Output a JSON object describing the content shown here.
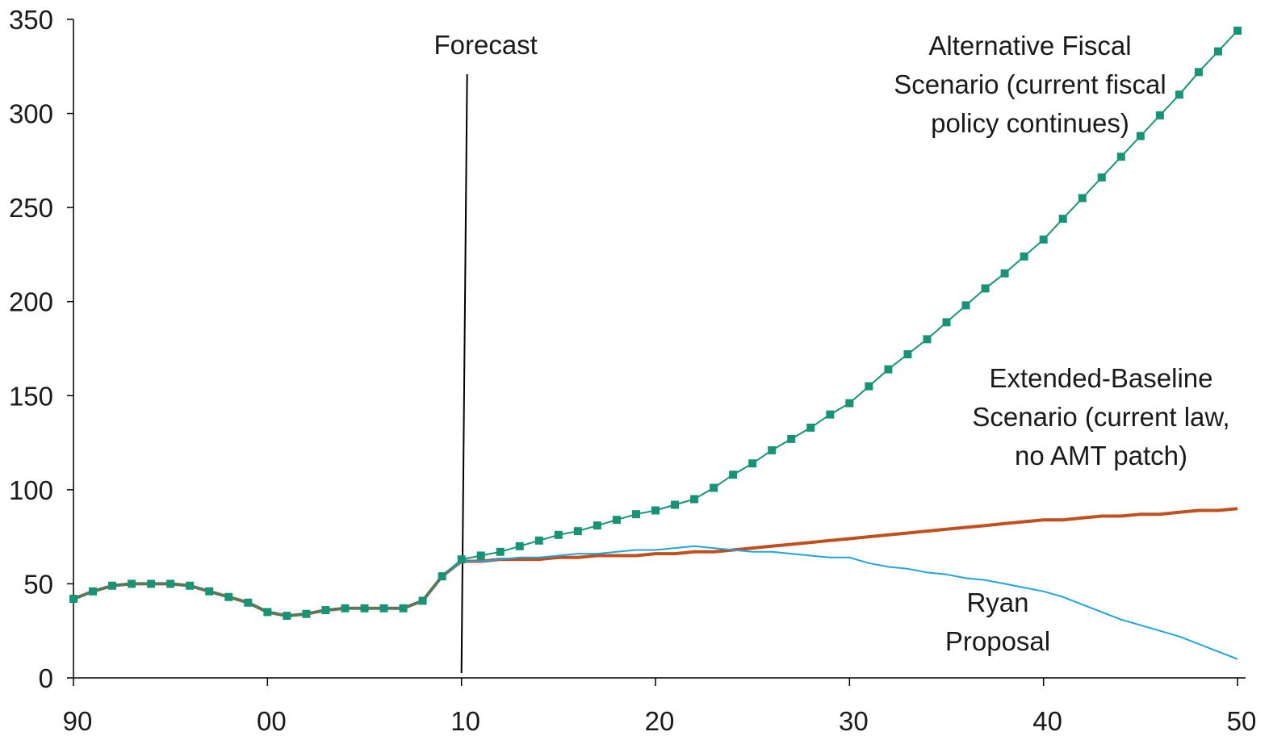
{
  "chart_data": {
    "type": "line",
    "title": "",
    "xlabel": "",
    "ylabel": "",
    "xlim": [
      1990,
      2050
    ],
    "ylim": [
      0,
      350
    ],
    "grid": false,
    "legend": "none",
    "x_ticks": [
      {
        "value": 1990,
        "label": "90"
      },
      {
        "value": 2000,
        "label": "00"
      },
      {
        "value": 2010,
        "label": "10"
      },
      {
        "value": 2020,
        "label": "20"
      },
      {
        "value": 2030,
        "label": "30"
      },
      {
        "value": 2040,
        "label": "40"
      },
      {
        "value": 2050,
        "label": "50"
      }
    ],
    "y_ticks": [
      0,
      50,
      100,
      150,
      200,
      250,
      300,
      350
    ],
    "x": [
      1990,
      1991,
      1992,
      1993,
      1994,
      1995,
      1996,
      1997,
      1998,
      1999,
      2000,
      2001,
      2002,
      2003,
      2004,
      2005,
      2006,
      2007,
      2008,
      2009,
      2010,
      2011,
      2012,
      2013,
      2014,
      2015,
      2016,
      2017,
      2018,
      2019,
      2020,
      2021,
      2022,
      2023,
      2024,
      2025,
      2026,
      2027,
      2028,
      2029,
      2030,
      2031,
      2032,
      2033,
      2034,
      2035,
      2036,
      2037,
      2038,
      2039,
      2040,
      2041,
      2042,
      2043,
      2044,
      2045,
      2046,
      2047,
      2048,
      2049,
      2050
    ],
    "series": [
      {
        "key": "extended",
        "color": "#c0501e",
        "values": [
          42,
          46,
          49,
          50,
          50,
          50,
          49,
          46,
          43,
          40,
          35,
          33,
          34,
          36,
          37,
          37,
          37,
          37,
          41,
          54,
          62,
          62,
          63,
          63,
          63,
          64,
          64,
          65,
          65,
          65,
          66,
          66,
          67,
          67,
          68,
          69,
          70,
          71,
          72,
          73,
          74,
          75,
          76,
          77,
          78,
          79,
          80,
          81,
          82,
          83,
          84,
          84,
          85,
          86,
          86,
          87,
          87,
          88,
          89,
          89,
          90
        ],
        "label_lines": [
          "Extended-Baseline",
          "Scenario (current law,",
          "no AMT patch)"
        ]
      },
      {
        "key": "ryan",
        "color": "#1ea4de",
        "values": [
          42,
          46,
          49,
          50,
          50,
          50,
          49,
          46,
          43,
          40,
          35,
          33,
          34,
          36,
          37,
          37,
          37,
          37,
          41,
          54,
          62,
          62,
          63,
          64,
          64,
          65,
          66,
          66,
          67,
          68,
          68,
          69,
          70,
          69,
          68,
          67,
          67,
          66,
          65,
          64,
          64,
          61,
          59,
          58,
          56,
          55,
          53,
          52,
          50,
          48,
          46,
          43,
          39,
          35,
          31,
          28,
          25,
          22,
          18,
          14,
          10
        ],
        "label_lines": [
          "Ryan",
          "Proposal"
        ]
      },
      {
        "key": "alternative",
        "color": "#169478",
        "markers": true,
        "values": [
          42,
          46,
          49,
          50,
          50,
          50,
          49,
          46,
          43,
          40,
          35,
          33,
          34,
          36,
          37,
          37,
          37,
          37,
          41,
          54,
          63,
          65,
          67,
          70,
          73,
          76,
          78,
          81,
          84,
          87,
          89,
          92,
          95,
          101,
          108,
          114,
          121,
          127,
          133,
          140,
          146,
          155,
          164,
          172,
          180,
          189,
          198,
          207,
          215,
          224,
          233,
          244,
          255,
          266,
          277,
          288,
          299,
          310,
          322,
          333,
          344
        ],
        "label_lines": [
          "Alternative Fiscal",
          "Scenario (current fiscal",
          "policy continues)"
        ]
      }
    ],
    "annotations": {
      "forecast_label": "Forecast",
      "forecast_x": 2010
    }
  }
}
